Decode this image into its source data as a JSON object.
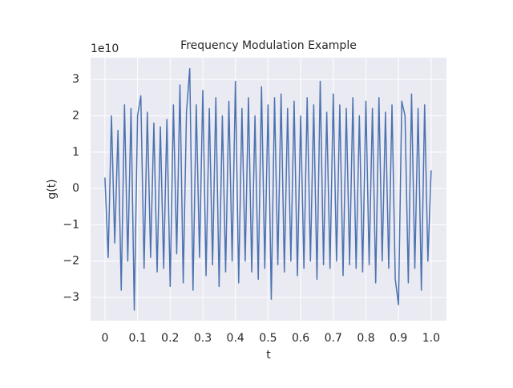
{
  "chart_data": {
    "type": "line",
    "title": "Frequency Modulation Example",
    "xlabel": "t",
    "ylabel": "g(t)",
    "y_offset_label": "1e10",
    "x": [
      0,
      0.01,
      0.02,
      0.03,
      0.04,
      0.05,
      0.06,
      0.07,
      0.08,
      0.09,
      0.1,
      0.11,
      0.12,
      0.13,
      0.14,
      0.15,
      0.16,
      0.17,
      0.18,
      0.19,
      0.2,
      0.21,
      0.22,
      0.23,
      0.24,
      0.25,
      0.26,
      0.27,
      0.28,
      0.29,
      0.3,
      0.31,
      0.32,
      0.33,
      0.34,
      0.35,
      0.36,
      0.37,
      0.38,
      0.39,
      0.4,
      0.41,
      0.42,
      0.43,
      0.44,
      0.45,
      0.46,
      0.47,
      0.48,
      0.49,
      0.5,
      0.51,
      0.52,
      0.53,
      0.54,
      0.55,
      0.56,
      0.57,
      0.58,
      0.59,
      0.6,
      0.61,
      0.62,
      0.63,
      0.64,
      0.65,
      0.66,
      0.67,
      0.68,
      0.69,
      0.7,
      0.71,
      0.72,
      0.73,
      0.74,
      0.75,
      0.76,
      0.77,
      0.78,
      0.79,
      0.8,
      0.81,
      0.82,
      0.83,
      0.84,
      0.85,
      0.86,
      0.87,
      0.88,
      0.89,
      0.9,
      0.91,
      0.92,
      0.93,
      0.94,
      0.95,
      0.96,
      0.97,
      0.98,
      0.99,
      1
    ],
    "series": [
      {
        "name": "g(t)",
        "color": "#4c72b0",
        "values": [
          3000000000.0,
          -19000000000.0,
          20000000000.0,
          -15000000000.0,
          16000000000.0,
          -28000000000.0,
          23000000000.0,
          -20000000000.0,
          22000000000.0,
          -33500000000.0,
          20000000000.0,
          25500000000.0,
          -22000000000.0,
          21000000000.0,
          -19000000000.0,
          18000000000.0,
          -23000000000.0,
          17000000000.0,
          -22000000000.0,
          19000000000.0,
          -27000000000.0,
          23000000000.0,
          -18000000000.0,
          28500000000.0,
          -26000000000.0,
          21000000000.0,
          33000000000.0,
          -28000000000.0,
          23000000000.0,
          -19000000000.0,
          27000000000.0,
          -24000000000.0,
          22000000000.0,
          -21000000000.0,
          25000000000.0,
          -27000000000.0,
          20000000000.0,
          -23000000000.0,
          24000000000.0,
          -20000000000.0,
          29500000000.0,
          -26000000000.0,
          22000000000.0,
          -20000000000.0,
          25000000000.0,
          -23000000000.0,
          20000000000.0,
          -25000000000.0,
          28000000000.0,
          -22000000000.0,
          23000000000.0,
          -30500000000.0,
          25000000000.0,
          -21000000000.0,
          26000000000.0,
          -23000000000.0,
          22000000000.0,
          -20000000000.0,
          24000000000.0,
          -24000000000.0,
          20000000000.0,
          -22000000000.0,
          25000000000.0,
          -20000000000.0,
          23000000000.0,
          -25000000000.0,
          29500000000.0,
          -21000000000.0,
          21000000000.0,
          -22000000000.0,
          26000000000.0,
          -20000000000.0,
          23000000000.0,
          -24000000000.0,
          22000000000.0,
          -21000000000.0,
          25000000000.0,
          -22000000000.0,
          20000000000.0,
          -23000000000.0,
          24000000000.0,
          -21000000000.0,
          22000000000.0,
          -26000000000.0,
          25000000000.0,
          -20000000000.0,
          21000000000.0,
          -22000000000.0,
          23000000000.0,
          -25000000000.0,
          -32000000000.0,
          24000000000.0,
          20000000000.0,
          -26000000000.0,
          26000000000.0,
          -22000000000.0,
          22000000000.0,
          -28000000000.0,
          23000000000.0,
          -20000000000.0,
          5000000000.0
        ]
      }
    ],
    "xlim": [
      -0.044,
      1.047
    ],
    "ylim": [
      -36400000000.0,
      36000000000.0
    ],
    "xticks": [
      0,
      0.1,
      0.2,
      0.3,
      0.4,
      0.5,
      0.6,
      0.7,
      0.8,
      0.9,
      {
        "value": 1,
        "label": "1.0"
      }
    ],
    "yticks": [
      {
        "value": -30000000000.0,
        "label": "−3"
      },
      {
        "value": -20000000000.0,
        "label": "−2"
      },
      {
        "value": -10000000000.0,
        "label": "−1"
      },
      {
        "value": 0,
        "label": "0"
      },
      {
        "value": 10000000000.0,
        "label": "1"
      },
      {
        "value": 20000000000.0,
        "label": "2"
      },
      {
        "value": 30000000000.0,
        "label": "3"
      }
    ],
    "grid": true,
    "background": "#eaeaf2"
  }
}
